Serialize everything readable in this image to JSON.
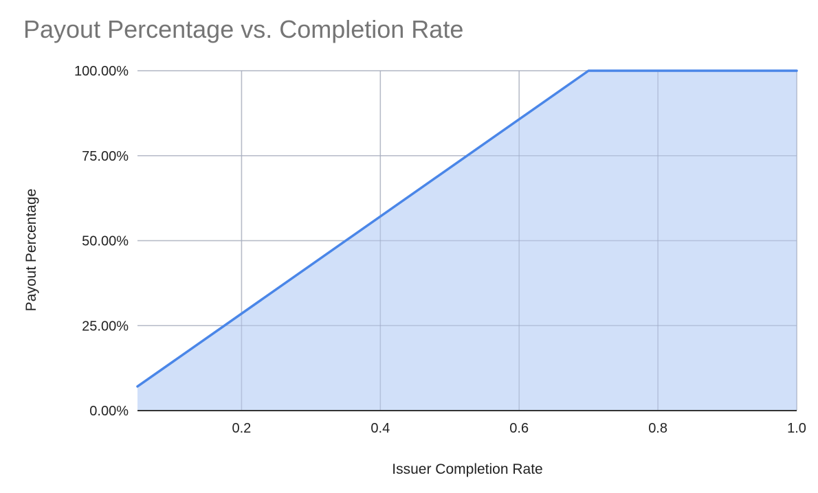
{
  "chart_data": {
    "type": "area",
    "title": "Payout Percentage vs. Completion Rate",
    "xlabel": "Issuer Completion Rate",
    "ylabel": "Payout Percentage",
    "xlim": [
      0.05,
      1.0
    ],
    "ylim": [
      0,
      100
    ],
    "x_ticks": [
      0.2,
      0.4,
      0.6,
      0.8,
      1.0
    ],
    "x_tick_labels": [
      "0.2",
      "0.4",
      "0.6",
      "0.8",
      "1.0"
    ],
    "y_ticks": [
      0,
      25,
      50,
      75,
      100
    ],
    "y_tick_labels": [
      "0.00%",
      "25.00%",
      "50.00%",
      "75.00%",
      "100.00%"
    ],
    "grid": true,
    "legend": "none",
    "series": [
      {
        "x": [
          0.05,
          0.7,
          1.0
        ],
        "y": [
          7.1,
          100,
          100
        ],
        "color": "#4a86e8",
        "fill": "#c9daf8"
      }
    ]
  }
}
